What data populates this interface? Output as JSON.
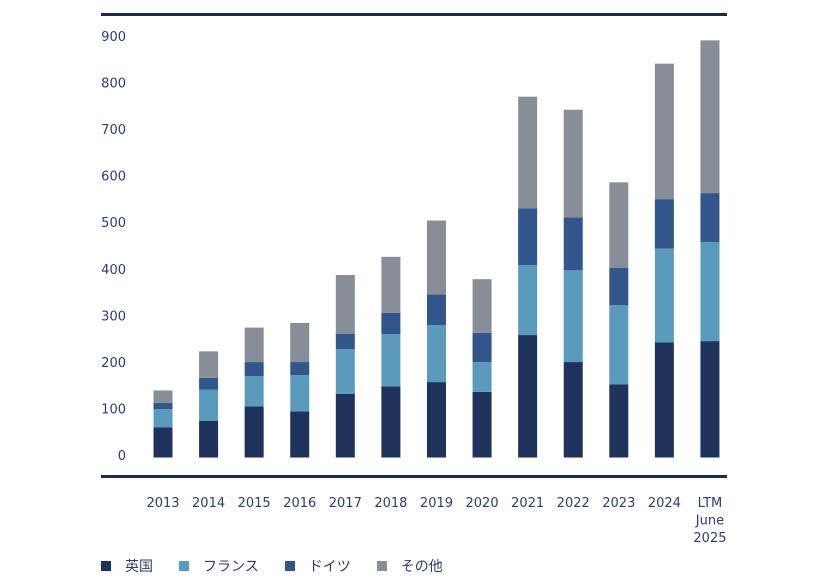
{
  "chart_data": {
    "type": "bar",
    "stacked": true,
    "title": "",
    "xlabel": "",
    "ylabel": "",
    "ylim": [
      0,
      900
    ],
    "yticks": [
      0,
      100,
      200,
      300,
      400,
      500,
      600,
      700,
      800,
      900
    ],
    "grid": false,
    "legend_position": "bottom-left",
    "categories": [
      "2013",
      "2014",
      "2015",
      "2016",
      "2017",
      "2018",
      "2019",
      "2020",
      "2021",
      "2022",
      "2023",
      "2024",
      "LTM\nJune\n2025"
    ],
    "series": [
      {
        "name": "英国",
        "color": "#1f325c",
        "values": [
          65,
          79,
          110,
          99,
          137,
          153,
          162,
          141,
          263,
          205,
          157,
          247,
          250
        ]
      },
      {
        "name": "フランス",
        "color": "#5a9bbd",
        "values": [
          39,
          67,
          65,
          78,
          96,
          112,
          122,
          64,
          150,
          197,
          170,
          202,
          213
        ]
      },
      {
        "name": "ドイツ",
        "color": "#32558c",
        "values": [
          13,
          25,
          30,
          28,
          33,
          46,
          66,
          63,
          122,
          114,
          80,
          106,
          105
        ]
      },
      {
        "name": "その他",
        "color": "#878e97",
        "values": [
          27,
          57,
          74,
          84,
          126,
          120,
          159,
          115,
          240,
          231,
          184,
          291,
          328
        ]
      }
    ]
  },
  "style": {
    "rule_color": "#1a2b52",
    "text_color": "#2b3f6e"
  }
}
